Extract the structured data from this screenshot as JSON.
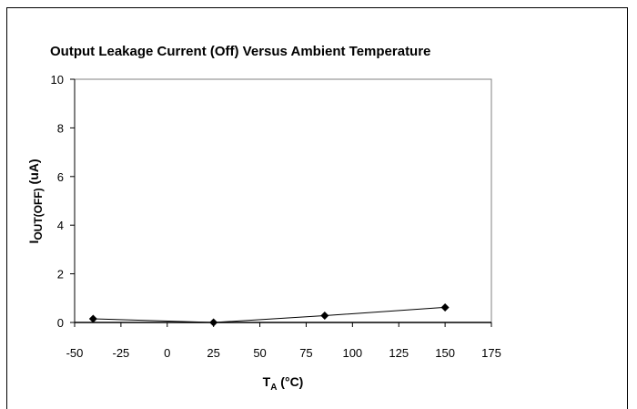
{
  "chart_data": {
    "type": "line",
    "title": "Output Leakage Current (Off) Versus Ambient Temperature",
    "xlabel": {
      "main": "T",
      "sub": "A",
      "unit": " (°C)"
    },
    "ylabel": {
      "main": "I",
      "sub": "OUT(OFF)",
      "unit": " (uA)"
    },
    "xlim": [
      -50,
      175
    ],
    "ylim": [
      0,
      10
    ],
    "x_ticks": [
      "-50",
      "-25",
      "0",
      "25",
      "50",
      "75",
      "100",
      "125",
      "150",
      "175"
    ],
    "y_ticks": [
      "0",
      "2",
      "4",
      "6",
      "8",
      "10"
    ],
    "grid": false,
    "series": [
      {
        "x": [
          -40,
          25,
          85,
          150
        ],
        "y": [
          0.15,
          0.0,
          0.28,
          0.62
        ],
        "marker": "diamond",
        "color": "#000000"
      }
    ]
  }
}
